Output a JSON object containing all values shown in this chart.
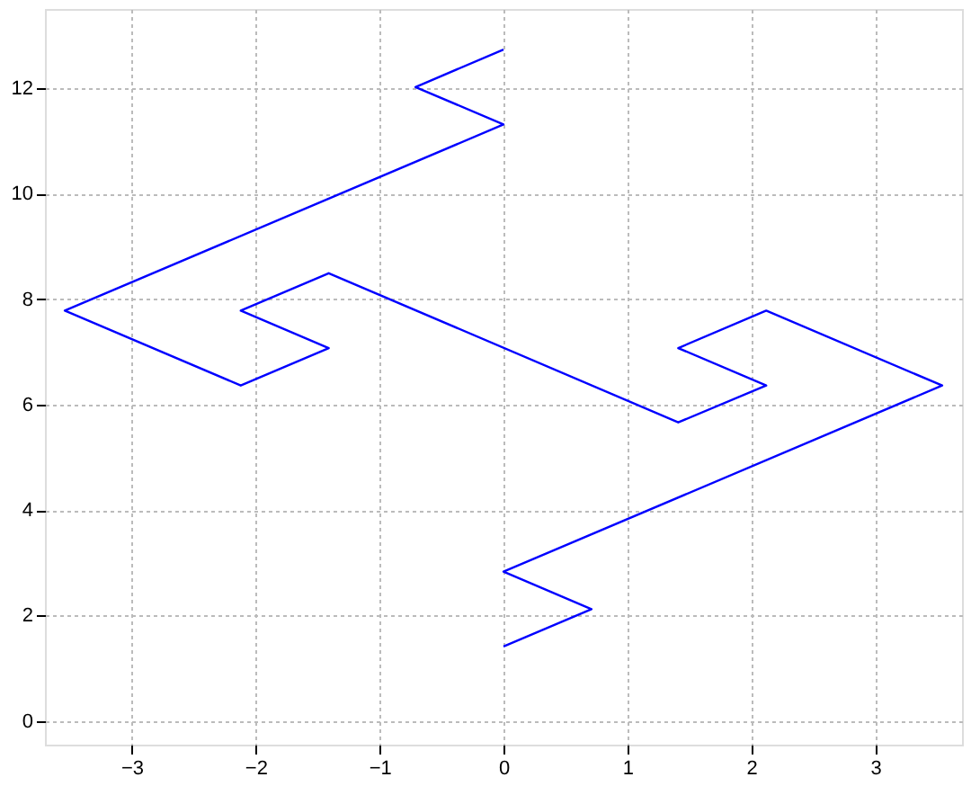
{
  "chart_data": {
    "type": "line",
    "x": [
      0,
      0.71,
      0,
      3.54,
      2.12,
      1.41,
      2.12,
      1.41,
      -1.41,
      -2.12,
      -1.41,
      -2.12,
      -3.54,
      0,
      -0.71,
      0
    ],
    "series": [
      {
        "color": "#0000ff",
        "values": [
          1.41,
          2.12,
          2.83,
          6.36,
          7.78,
          7.07,
          6.36,
          5.66,
          8.49,
          7.78,
          7.07,
          6.36,
          7.78,
          11.31,
          12.02,
          12.73
        ]
      }
    ],
    "xlim": [
      -3.7,
      3.7
    ],
    "ylim": [
      -0.45,
      13.5
    ],
    "xticks": [
      -3,
      -2,
      -1,
      0,
      1,
      2,
      3
    ],
    "yticks": [
      0,
      2,
      4,
      6,
      8,
      10,
      12
    ],
    "grid": true,
    "marker": "none",
    "line_style": "solid"
  }
}
